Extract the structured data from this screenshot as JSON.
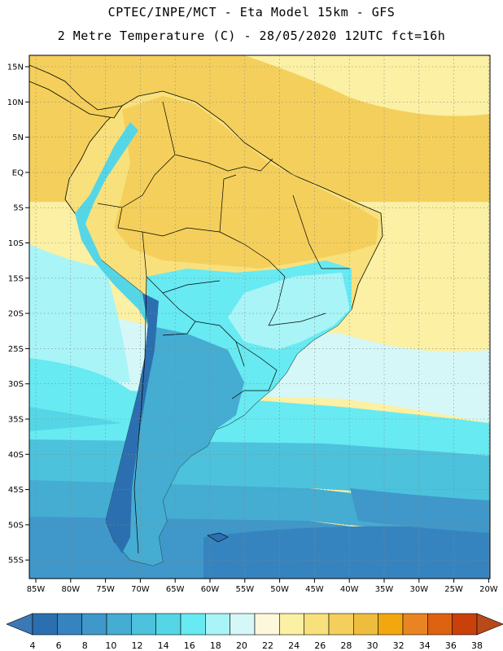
{
  "header": {
    "line1": "CPTEC/INPE/MCT -  Eta Model 15km - GFS",
    "line2": "2 Metre Temperature (C) - 28/05/2020 12UTC fct=16h"
  },
  "map": {
    "lat_ticks": [
      "15N",
      "10N",
      "5N",
      "EQ",
      "5S",
      "10S",
      "15S",
      "20S",
      "25S",
      "30S",
      "35S",
      "40S",
      "45S",
      "50S",
      "55S"
    ],
    "lon_ticks": [
      "85W",
      "80W",
      "75W",
      "70W",
      "65W",
      "60W",
      "55W",
      "50W",
      "45W",
      "40W",
      "35W",
      "30W",
      "25W",
      "20W"
    ]
  },
  "colorbar": {
    "labels": [
      "4",
      "6",
      "8",
      "10",
      "12",
      "14",
      "16",
      "18",
      "20",
      "22",
      "24",
      "26",
      "28",
      "30",
      "32",
      "34",
      "36",
      "38"
    ],
    "colors": [
      "#2c6fb0",
      "#3684bf",
      "#3f98c9",
      "#45acd2",
      "#4cc2dc",
      "#55d6e6",
      "#67eaf2",
      "#a9f4f7",
      "#d6f7f7",
      "#fdf7dc",
      "#fbf0a3",
      "#f8e17c",
      "#f4cf5b",
      "#efbd3e",
      "#f2a70e",
      "#e88522",
      "#dd6311",
      "#c9400b"
    ],
    "low_color": "#3b79b6",
    "high_color": "#b84a1a"
  }
}
